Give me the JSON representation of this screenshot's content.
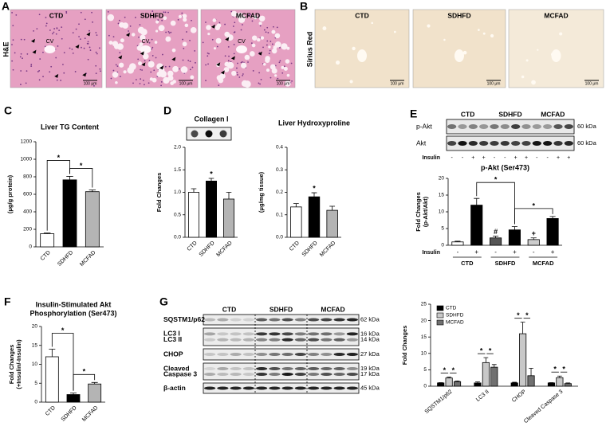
{
  "histology": [
    {
      "panel": "A",
      "row_label": "H&E",
      "images": [
        {
          "title": "CTD",
          "markers": [
            "CV"
          ],
          "scale_bar": "100 μm"
        },
        {
          "title": "SDHFD",
          "markers": [
            "CV"
          ],
          "scale_bar": "100 μm"
        },
        {
          "title": "MCFAD",
          "markers": [
            "CV"
          ],
          "scale_bar": "100 μm"
        }
      ]
    },
    {
      "panel": "B",
      "row_label": "Sirius Red",
      "images": [
        {
          "title": "CTD",
          "markers": [],
          "scale_bar": "100 μm"
        },
        {
          "title": "SDHFD",
          "markers": [],
          "scale_bar": "100 μm"
        },
        {
          "title": "MCFAD",
          "markers": [],
          "scale_bar": "100 μm"
        }
      ]
    }
  ],
  "blots": [
    {
      "groups": [
        "CTD",
        "SDHFD",
        "MCFAD"
      ],
      "rows": [
        {
          "labels": [
            "p-Akt"
          ],
          "kda": [
            "60 kDa"
          ]
        },
        {
          "labels": [
            "Akt"
          ],
          "kda": [
            "60 kDa"
          ]
        }
      ],
      "lane_row_label": "Insulin",
      "lanes": [
        "-",
        "-",
        "+",
        "+",
        "-",
        "-",
        "+",
        "+",
        "-",
        "-",
        "+",
        "+"
      ]
    },
    {
      "groups": [
        "CTD",
        "SDHFD",
        "MCFAD"
      ],
      "rows": [
        {
          "labels": [
            "SQSTM1/p62"
          ],
          "kda": [
            "62 kDa"
          ]
        },
        {
          "labels": [
            "LC3 I",
            "LC3 II"
          ],
          "kda": [
            "16 kDa",
            "14 kDa"
          ]
        },
        {
          "labels": [
            "CHOP"
          ],
          "kda": [
            "27 kDa"
          ]
        },
        {
          "labels": [
            "Cleaved",
            "Caspase 3"
          ],
          "kda": [
            "19 kDa",
            "17 kDa"
          ]
        },
        {
          "labels": [
            "β-actin"
          ],
          "kda": [
            "45 kDa"
          ]
        }
      ]
    }
  ],
  "chart_data": [
    {
      "type": "bar",
      "panel": "C",
      "title": "Liver TG Content",
      "y_label": "(μg/g protein)",
      "categories": [
        "CTD",
        "SDHFD",
        "MCFAD"
      ],
      "values": [
        150,
        765,
        630
      ],
      "errors": [
        8,
        40,
        20
      ],
      "colors": [
        "#ffffff",
        "#000000",
        "#b4b4b4"
      ],
      "ylim": [
        0,
        1200
      ],
      "yticks": [
        0,
        200,
        400,
        600,
        800,
        1000,
        1200
      ],
      "brackets": [
        {
          "label": "*",
          "bars": [
            0,
            1
          ]
        },
        {
          "label": "*",
          "bars": [
            1,
            2
          ]
        }
      ]
    },
    {
      "type": "bar",
      "panel": "D",
      "title": "Collagen I",
      "y_label": "Fold Changes",
      "categories": [
        "CTD",
        "SDHFD",
        "MCFAD"
      ],
      "values": [
        1.0,
        1.25,
        0.85
      ],
      "errors": [
        0.08,
        0.06,
        0.15
      ],
      "colors": [
        "#ffffff",
        "#000000",
        "#b4b4b4"
      ],
      "ylim": [
        0,
        2
      ],
      "yticks": [
        {
          "value": 0,
          "label": "0.0"
        },
        0.5,
        {
          "value": 1,
          "label": "1.0"
        },
        1.5,
        {
          "value": 2,
          "label": "2.0"
        }
      ],
      "value_annotations": [
        null,
        "*",
        null
      ]
    },
    {
      "type": "bar",
      "title": "Liver Hydroxyproline",
      "y_label": "(μg/mg tissue)",
      "categories": [
        "CTD",
        "SDHFD",
        "MCFAD"
      ],
      "values": [
        0.135,
        0.18,
        0.12
      ],
      "errors": [
        0.015,
        0.018,
        0.018
      ],
      "colors": [
        "#ffffff",
        "#000000",
        "#b4b4b4"
      ],
      "ylim": [
        0,
        0.4
      ],
      "yticks": [
        {
          "value": 0,
          "label": "0.0"
        },
        0.1,
        0.2,
        0.3,
        0.4
      ],
      "value_annotations": [
        null,
        "*",
        null
      ]
    },
    {
      "type": "bar",
      "panel": "E",
      "title": "p-Akt (Ser473)",
      "y_label": [
        "Fold Changes",
        "(p-Akt/Akt)"
      ],
      "x_row_label": "Insulin",
      "categories": [
        "-",
        "+",
        "-",
        "+",
        "-",
        "+"
      ],
      "groups": [
        "CTD",
        "SDHFD",
        "MCFAD"
      ],
      "values": [
        1.0,
        12,
        2.2,
        4.6,
        1.7,
        8.0
      ],
      "errors": [
        0.2,
        2,
        0.5,
        1.0,
        0.5,
        0.6
      ],
      "colors": [
        "#ffffff",
        "#000000",
        "#555555",
        "#000000",
        "#cccccc",
        "#000000"
      ],
      "ylim": [
        0,
        20
      ],
      "yticks": [
        0,
        5,
        10,
        15,
        20
      ],
      "value_annotations": [
        null,
        null,
        "#",
        null,
        "+",
        null
      ],
      "brackets": [
        {
          "label": "*",
          "bars": [
            1,
            3
          ]
        },
        {
          "label": "*",
          "bars": [
            3,
            5
          ]
        }
      ]
    },
    {
      "type": "bar",
      "panel": "F",
      "title": [
        "Insulin-Stimulated Akt",
        "Phosphorylation (Ser473)"
      ],
      "y_label": [
        "Fold Changes",
        "(+Insulin/-Insulin)"
      ],
      "categories": [
        "CTD",
        "SDHFD",
        "MCFAD"
      ],
      "values": [
        12,
        2,
        4.8
      ],
      "errors": [
        2,
        0.4,
        0.4
      ],
      "colors": [
        "#ffffff",
        "#000000",
        "#b4b4b4"
      ],
      "ylim": [
        0,
        20
      ],
      "yticks": [
        0,
        5,
        10,
        15,
        20
      ],
      "brackets": [
        {
          "label": "*",
          "bars": [
            0,
            1
          ]
        },
        {
          "label": "*",
          "bars": [
            1,
            2
          ]
        }
      ]
    },
    {
      "type": "grouped_bar",
      "panel": "G",
      "y_label": "Fold Changes",
      "categories": [
        "SQSTM1/p62",
        "LC3 II",
        "CHOP",
        "Cleaved Caspase 3"
      ],
      "series": [
        {
          "name": "CTD",
          "color": "#000000",
          "values": [
            1,
            1,
            1,
            1
          ],
          "errors": [
            0.1,
            0.3,
            0.2,
            0.1
          ]
        },
        {
          "name": "SDHFD",
          "color": "#c8c8c8",
          "values": [
            2.5,
            7.2,
            16,
            2.6
          ],
          "errors": [
            0.3,
            1.5,
            3.5,
            0.5
          ]
        },
        {
          "name": "MCFAD",
          "color": "#707070",
          "values": [
            1.4,
            5.8,
            3.2,
            0.8
          ],
          "errors": [
            0.2,
            0.8,
            2.3,
            0.2
          ]
        }
      ],
      "ylim": [
        0,
        25
      ],
      "yticks": [
        0,
        5,
        10,
        15,
        20,
        25
      ],
      "legend": "top-left",
      "brackets": [
        {
          "label": "*",
          "category": 0,
          "series": [
            0,
            1
          ]
        },
        {
          "label": "*",
          "category": 0,
          "series": [
            1,
            2
          ]
        },
        {
          "label": "*",
          "category": 1,
          "series": [
            0,
            1
          ]
        },
        {
          "label": "*",
          "category": 1,
          "series": [
            1,
            2
          ]
        },
        {
          "label": "*",
          "category": 2,
          "series": [
            0,
            1
          ]
        },
        {
          "label": "*",
          "category": 2,
          "series": [
            1,
            2
          ]
        },
        {
          "label": "*",
          "category": 3,
          "series": [
            0,
            1
          ]
        },
        {
          "label": "*",
          "category": 3,
          "series": [
            1,
            2
          ]
        }
      ]
    }
  ]
}
